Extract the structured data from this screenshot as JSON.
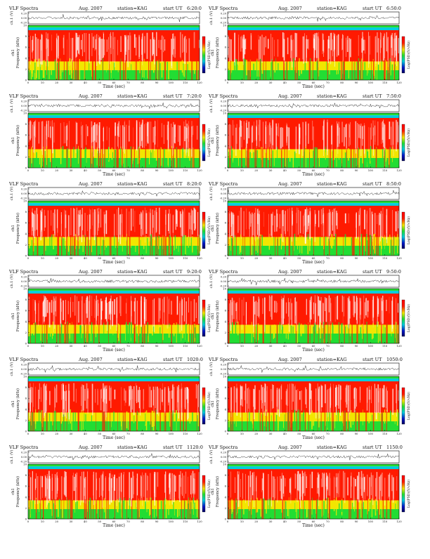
{
  "header": {
    "title": "VLF Spectra",
    "date": "Aug. 2007",
    "station": "station=KAG",
    "start_label": "start  UT"
  },
  "panel_labels": {
    "ch1_amp": "ch.1 (V)",
    "spec_ylabel": "Frequency (kHz)",
    "spec_ylabel_ch": "ch1",
    "colorbar_label": "Log(PSD)(V/√Hz)",
    "xlabel": "Time (sec)"
  },
  "colors": {
    "background": "#ffffff",
    "red": "#ff1a00",
    "yellow": "#f2e600",
    "green": "#22dd33",
    "cyan": "#00ccdd",
    "blue": "#0018c8",
    "navy": "#000060"
  },
  "chart_data": [
    {
      "type": "heatmap",
      "start_time": "6:20:0",
      "xlabel": "Time (sec)",
      "ylabel": "Frequency (kHz)",
      "xlim": [
        0,
        120
      ],
      "ylim": [
        0,
        10
      ],
      "x_ticks": [
        0,
        10,
        20,
        30,
        40,
        50,
        60,
        70,
        80,
        90,
        100,
        110,
        120
      ],
      "y_ticks": [
        0,
        2,
        4,
        6,
        8,
        10
      ],
      "amp_ticks": [
        "0.20",
        "0.00",
        "-0.20"
      ],
      "amp_ylim": [
        -0.3,
        0.3
      ]
    },
    {
      "type": "heatmap",
      "start_time": "6:50:0",
      "xlabel": "Time (sec)",
      "ylabel": "Frequency (kHz)",
      "xlim": [
        0,
        120
      ],
      "ylim": [
        0,
        10
      ],
      "x_ticks": [
        0,
        10,
        20,
        30,
        40,
        50,
        60,
        70,
        80,
        90,
        100,
        110,
        120
      ],
      "y_ticks": [
        0,
        2,
        4,
        6,
        8,
        10
      ],
      "amp_ticks": [
        "0.20",
        "0.00",
        "-0.20"
      ],
      "amp_ylim": [
        -0.3,
        0.3
      ]
    },
    {
      "type": "heatmap",
      "start_time": "7:20:0",
      "xlabel": "Time (sec)",
      "ylabel": "Frequency (kHz)",
      "xlim": [
        0,
        120
      ],
      "ylim": [
        0,
        10
      ],
      "x_ticks": [
        0,
        10,
        20,
        30,
        40,
        50,
        60,
        70,
        80,
        90,
        100,
        110,
        120
      ],
      "y_ticks": [
        0,
        2,
        4,
        6,
        8,
        10
      ],
      "amp_ticks": [
        "0.20",
        "0.00",
        "-0.20"
      ],
      "amp_ylim": [
        -0.3,
        0.3
      ]
    },
    {
      "type": "heatmap",
      "start_time": "7:50:0",
      "xlabel": "Time (sec)",
      "ylabel": "Frequency (kHz)",
      "xlim": [
        0,
        120
      ],
      "ylim": [
        0,
        10
      ],
      "x_ticks": [
        0,
        10,
        20,
        30,
        40,
        50,
        60,
        70,
        80,
        90,
        100,
        110,
        120
      ],
      "y_ticks": [
        0,
        2,
        4,
        6,
        8,
        10
      ],
      "amp_ticks": [
        "0.20",
        "0.00",
        "-0.20"
      ],
      "amp_ylim": [
        -0.3,
        0.3
      ]
    },
    {
      "type": "heatmap",
      "start_time": "8:20:0",
      "xlabel": "Time (sec)",
      "ylabel": "Frequency (kHz)",
      "xlim": [
        0,
        120
      ],
      "ylim": [
        0,
        10
      ],
      "x_ticks": [
        0,
        10,
        20,
        30,
        40,
        50,
        60,
        70,
        80,
        90,
        100,
        110,
        120
      ],
      "y_ticks": [
        0,
        2,
        4,
        6,
        8,
        10
      ],
      "amp_ticks": [
        "0.20",
        "0.00",
        "-0.20"
      ],
      "amp_ylim": [
        -0.3,
        0.3
      ]
    },
    {
      "type": "heatmap",
      "start_time": "8:50:0",
      "xlabel": "Time (sec)",
      "ylabel": "Frequency (kHz)",
      "xlim": [
        0,
        120
      ],
      "ylim": [
        0,
        10
      ],
      "x_ticks": [
        0,
        10,
        20,
        30,
        40,
        50,
        60,
        70,
        80,
        90,
        100,
        110,
        120
      ],
      "y_ticks": [
        0,
        2,
        4,
        6,
        8,
        10
      ],
      "amp_ticks": [
        "0.20",
        "0.00",
        "-0.20"
      ],
      "amp_ylim": [
        -0.3,
        0.3
      ]
    },
    {
      "type": "heatmap",
      "start_time": "9:20:0",
      "xlabel": "Time (sec)",
      "ylabel": "Frequency (kHz)",
      "xlim": [
        0,
        120
      ],
      "ylim": [
        0,
        10
      ],
      "x_ticks": [
        0,
        10,
        20,
        30,
        40,
        50,
        60,
        70,
        80,
        90,
        100,
        110,
        120
      ],
      "y_ticks": [
        0,
        2,
        4,
        6,
        8,
        10
      ],
      "amp_ticks": [
        "0.20",
        "0.00",
        "-0.20"
      ],
      "amp_ylim": [
        -0.3,
        0.3
      ]
    },
    {
      "type": "heatmap",
      "start_time": "9:50:0",
      "xlabel": "Time (sec)",
      "ylabel": "Frequency (kHz)",
      "xlim": [
        0,
        120
      ],
      "ylim": [
        0,
        10
      ],
      "x_ticks": [
        0,
        10,
        20,
        30,
        40,
        50,
        60,
        70,
        80,
        90,
        100,
        110,
        120
      ],
      "y_ticks": [
        0,
        2,
        4,
        6,
        8,
        10
      ],
      "amp_ticks": [
        "0.20",
        "0.00",
        "-0.20"
      ],
      "amp_ylim": [
        -0.3,
        0.3
      ]
    },
    {
      "type": "heatmap",
      "start_time": "1020:0",
      "xlabel": "Time (sec)",
      "ylabel": "Frequency (kHz)",
      "xlim": [
        0,
        120
      ],
      "ylim": [
        0,
        10
      ],
      "x_ticks": [
        0,
        10,
        20,
        30,
        40,
        50,
        60,
        70,
        80,
        90,
        100,
        110,
        120
      ],
      "y_ticks": [
        0,
        2,
        4,
        6,
        8,
        10
      ],
      "amp_ticks": [
        "0.20",
        "0.00",
        "-0.20"
      ],
      "amp_ylim": [
        -0.3,
        0.3
      ]
    },
    {
      "type": "heatmap",
      "start_time": "1050:0",
      "xlabel": "Time (sec)",
      "ylabel": "Frequency (kHz)",
      "xlim": [
        0,
        120
      ],
      "ylim": [
        0,
        10
      ],
      "x_ticks": [
        0,
        10,
        20,
        30,
        40,
        50,
        60,
        70,
        80,
        90,
        100,
        110,
        120
      ],
      "y_ticks": [
        0,
        2,
        4,
        6,
        8,
        10
      ],
      "amp_ticks": [
        "0.20",
        "0.00",
        "-0.20"
      ],
      "amp_ylim": [
        -0.3,
        0.3
      ]
    },
    {
      "type": "heatmap",
      "start_time": "1120:0",
      "xlabel": "Time (sec)",
      "ylabel": "Frequency (kHz)",
      "xlim": [
        0,
        120
      ],
      "ylim": [
        0,
        10
      ],
      "x_ticks": [
        0,
        10,
        20,
        30,
        40,
        50,
        60,
        70,
        80,
        90,
        100,
        110,
        120
      ],
      "y_ticks": [
        0,
        2,
        4,
        6,
        8,
        10
      ],
      "amp_ticks": [
        "0.20",
        "0.00",
        "-0.20"
      ],
      "amp_ylim": [
        -0.3,
        0.3
      ]
    },
    {
      "type": "heatmap",
      "start_time": "1150:0",
      "xlabel": "Time (sec)",
      "ylabel": "Frequency (kHz)",
      "xlim": [
        0,
        120
      ],
      "ylim": [
        0,
        10
      ],
      "x_ticks": [
        0,
        10,
        20,
        30,
        40,
        50,
        60,
        70,
        80,
        90,
        100,
        110,
        120
      ],
      "y_ticks": [
        0,
        2,
        4,
        6,
        8,
        10
      ],
      "amp_ticks": [
        "0.20",
        "0.00",
        "-0.20"
      ],
      "amp_ylim": [
        -0.3,
        0.3
      ]
    }
  ]
}
